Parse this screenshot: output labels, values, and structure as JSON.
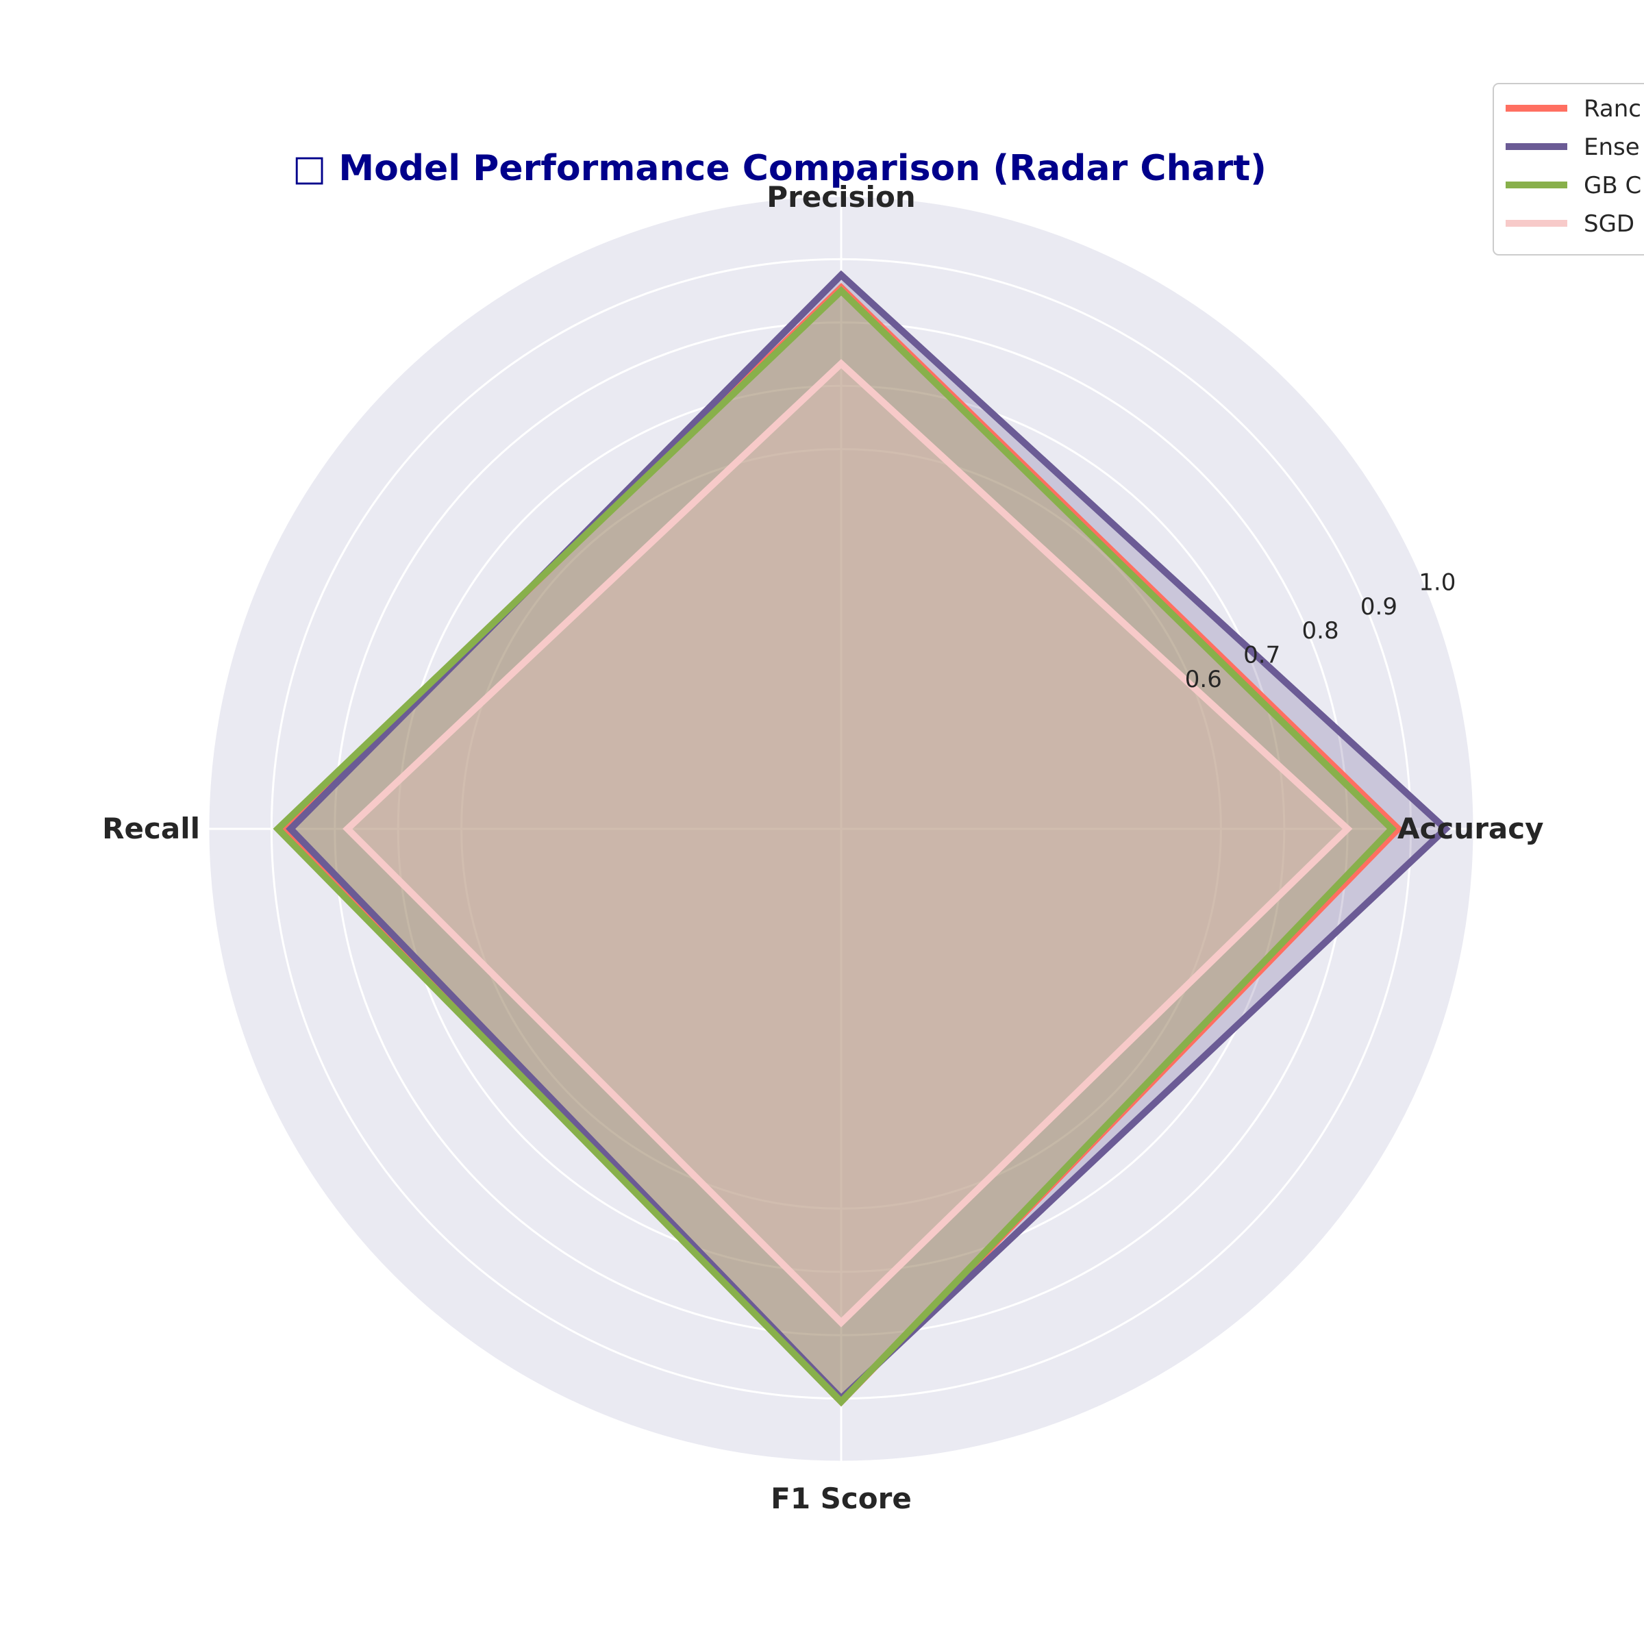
{
  "chart_data": {
    "type": "radar",
    "title": "□ Model Performance Comparison (Radar Chart)",
    "categories": [
      "Accuracy",
      "Precision",
      "Recall",
      "F1 Score"
    ],
    "rlim": [
      0.0,
      1.0
    ],
    "rticks": [
      0.6,
      0.7,
      0.8,
      0.9,
      1.0
    ],
    "rtick_labels": [
      "0.6",
      "0.7",
      "0.8",
      "0.9",
      "1.0"
    ],
    "grid": true,
    "legend_position": "top-right",
    "series": [
      {
        "name": "Ranc",
        "values": [
          0.88,
          0.855,
          0.885,
          0.905
        ],
        "color": "#ff6f61"
      },
      {
        "name": "Ense",
        "values": [
          0.955,
          0.875,
          0.87,
          0.9
        ],
        "color": "#6b5b95"
      },
      {
        "name": "GB C",
        "values": [
          0.87,
          0.85,
          0.89,
          0.905
        ],
        "color": "#88b04b"
      },
      {
        "name": "SGD",
        "values": [
          0.8,
          0.735,
          0.78,
          0.78
        ],
        "color": "#f7cac9"
      }
    ]
  }
}
